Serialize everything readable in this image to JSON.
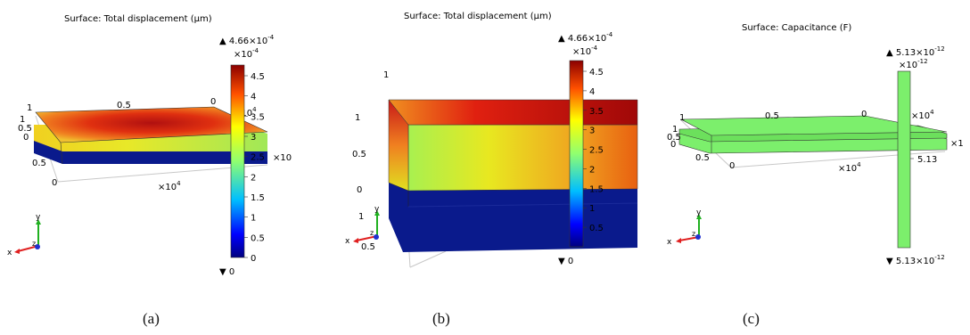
{
  "panels": [
    {
      "id": "a",
      "title": "Surface: Total displacement (μm)",
      "caption": "(a)",
      "colorbar": {
        "max_label": "▲ 4.66×10",
        "max_exp": "-4",
        "scale_label": "×10",
        "scale_exp": "-4",
        "ticks": [
          "4.5",
          "4",
          "3.5",
          "3",
          "2.5",
          "2",
          "1.5",
          "1",
          "0.5",
          "0"
        ],
        "min_label": "▼ 0"
      },
      "axis_labels": [
        "1",
        "0.5",
        "0",
        "1",
        "0.5",
        "0",
        "0.5",
        "0",
        "×10",
        "4",
        "×10",
        "4",
        "×10"
      ],
      "triad": {
        "x": "x",
        "y": "y",
        "z": "z"
      }
    },
    {
      "id": "b",
      "title": "Surface: Total displacement (μm)",
      "caption": "(b)",
      "colorbar": {
        "max_label": "▲ 4.66×10",
        "max_exp": "-4",
        "scale_label": "×10",
        "scale_exp": "-4",
        "ticks": [
          "4.5",
          "4",
          "3.5",
          "3",
          "2.5",
          "2",
          "1.5",
          "1",
          "0.5"
        ],
        "min_label": "▼ 0"
      },
      "axis_labels": [
        "1",
        "1",
        "0.5",
        "0",
        "1",
        "0.5"
      ],
      "triad": {
        "x": "x",
        "y": "y",
        "z": "z"
      }
    },
    {
      "id": "c",
      "title": "Surface: Capacitance (F)",
      "caption": "(c)",
      "colorbar": {
        "max_label": "▲ 5.13×10",
        "max_exp": "-12",
        "scale_label": "×10",
        "scale_exp": "-12",
        "ticks": [
          "5.13"
        ],
        "min_label": "▼ 5.13×10",
        "min_exp": "-12"
      },
      "axis_labels": [
        "1",
        "0.5",
        "0",
        "1",
        "0.5",
        "0",
        "0.5",
        "0",
        "×10",
        "4",
        "×10",
        "4",
        "×1"
      ],
      "triad": {
        "x": "x",
        "y": "y",
        "z": "z"
      }
    }
  ],
  "colors": {
    "top_hot": "#c81010",
    "top_warm": "#f07020",
    "top_mid": "#e8e020",
    "top_light": "#a8f050",
    "bottom_layer": "#0a1a8c",
    "capacitance": "#7cef6c",
    "axis_x": "#e02020",
    "axis_y": "#20b020",
    "axis_z": "#2030d0"
  }
}
